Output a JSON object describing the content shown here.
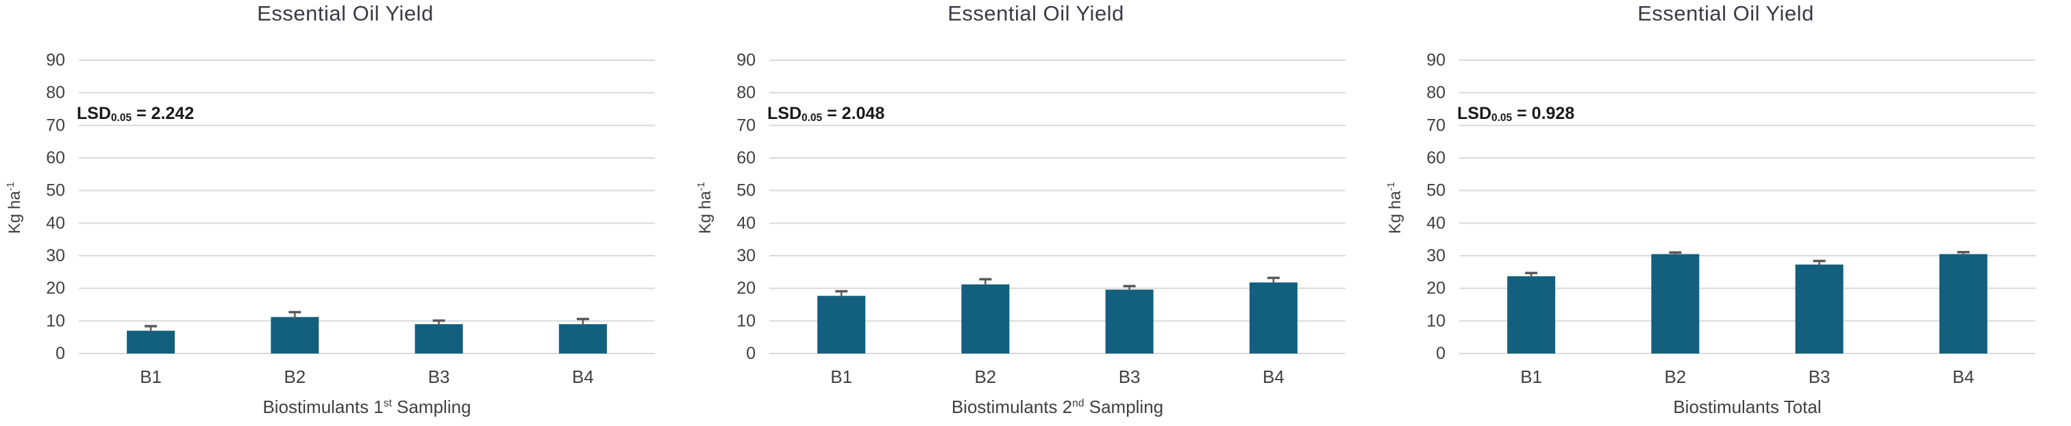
{
  "page": {
    "background": "#FFFFFF"
  },
  "colors": {
    "bar": "#135F7E",
    "gridline": "#D9D9D9",
    "axis_text": "#404040",
    "error_bar": "#595959",
    "title_text": "#3A3A44",
    "lsd_text": "#1A1A1A"
  },
  "chart_data": [
    {
      "type": "bar",
      "title": "Essential Oil Yield",
      "ylabel": {
        "base": "Kg ha",
        "sup": "-1"
      },
      "xlabel": {
        "pre": "Biostimulants 1",
        "sup": "st",
        "post": " Sampling"
      },
      "lsd": {
        "pre": "LSD",
        "sub": "0.05",
        "post": " = 2.242"
      },
      "categories": [
        "B1",
        "B2",
        "B3",
        "B4"
      ],
      "values": [
        7.0,
        11.2,
        9.0,
        9.0
      ],
      "errors": [
        1.4,
        1.5,
        1.1,
        1.6
      ],
      "ylim": [
        0,
        90
      ],
      "ytick_step": 10,
      "grid": "horizontal",
      "legend": "none"
    },
    {
      "type": "bar",
      "title": "Essential Oil Yield",
      "ylabel": {
        "base": "Kg ha",
        "sup": "-1"
      },
      "xlabel": {
        "pre": "Biostimulants 2",
        "sup": "nd",
        "post": " Sampling"
      },
      "lsd": {
        "pre": "LSD",
        "sub": "0.05",
        "post": " = 2.048"
      },
      "categories": [
        "B1",
        "B2",
        "B3",
        "B4"
      ],
      "values": [
        17.7,
        21.2,
        19.6,
        21.8
      ],
      "errors": [
        1.4,
        1.6,
        1.1,
        1.4
      ],
      "ylim": [
        0,
        90
      ],
      "ytick_step": 10,
      "grid": "horizontal",
      "legend": "none"
    },
    {
      "type": "bar",
      "title": "Essential Oil Yield",
      "ylabel": {
        "base": "Kg ha",
        "sup": "-1"
      },
      "xlabel": {
        "pre": "Biostimulants Total",
        "sup": "",
        "post": ""
      },
      "lsd": {
        "pre": "LSD",
        "sub": "0.05",
        "post": " = 0.928"
      },
      "categories": [
        "B1",
        "B2",
        "B3",
        "B4"
      ],
      "values": [
        23.7,
        30.5,
        27.3,
        30.5
      ],
      "errors": [
        1.0,
        0.5,
        1.1,
        0.6
      ],
      "ylim": [
        0,
        90
      ],
      "ytick_step": 10,
      "grid": "horizontal",
      "legend": "none"
    }
  ]
}
